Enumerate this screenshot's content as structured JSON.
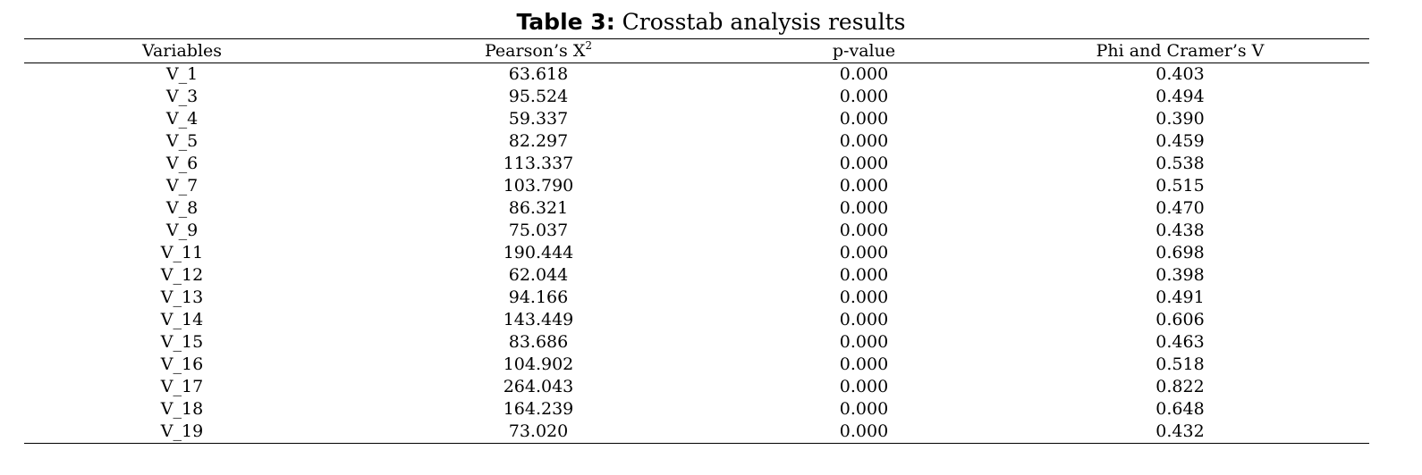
{
  "caption": {
    "label": "Table 3:",
    "text": " Crosstab analysis results"
  },
  "table": {
    "headers": {
      "variables": "Variables",
      "pearson": "Pearson’s X",
      "pearson_sup": "2",
      "pvalue": "p-value",
      "phi": "Phi and Cramer’s V"
    },
    "rows": [
      {
        "variable": "V_1",
        "pearson": "63.618",
        "pvalue": "0.000",
        "phi": "0.403"
      },
      {
        "variable": "V_3",
        "pearson": "95.524",
        "pvalue": "0.000",
        "phi": "0.494"
      },
      {
        "variable": "V_4",
        "pearson": "59.337",
        "pvalue": "0.000",
        "phi": "0.390"
      },
      {
        "variable": "V_5",
        "pearson": "82.297",
        "pvalue": "0.000",
        "phi": "0.459"
      },
      {
        "variable": "V_6",
        "pearson": "113.337",
        "pvalue": "0.000",
        "phi": "0.538"
      },
      {
        "variable": "V_7",
        "pearson": "103.790",
        "pvalue": "0.000",
        "phi": "0.515"
      },
      {
        "variable": "V_8",
        "pearson": "86.321",
        "pvalue": "0.000",
        "phi": "0.470"
      },
      {
        "variable": "V_9",
        "pearson": "75.037",
        "pvalue": "0.000",
        "phi": "0.438"
      },
      {
        "variable": "V_11",
        "pearson": "190.444",
        "pvalue": "0.000",
        "phi": "0.698"
      },
      {
        "variable": "V_12",
        "pearson": "62.044",
        "pvalue": "0.000",
        "phi": "0.398"
      },
      {
        "variable": "V_13",
        "pearson": "94.166",
        "pvalue": "0.000",
        "phi": "0.491"
      },
      {
        "variable": "V_14",
        "pearson": "143.449",
        "pvalue": "0.000",
        "phi": "0.606"
      },
      {
        "variable": "V_15",
        "pearson": "83.686",
        "pvalue": "0.000",
        "phi": "0.463"
      },
      {
        "variable": "V_16",
        "pearson": "104.902",
        "pvalue": "0.000",
        "phi": "0.518"
      },
      {
        "variable": "V_17",
        "pearson": "264.043",
        "pvalue": "0.000",
        "phi": "0.822"
      },
      {
        "variable": "V_18",
        "pearson": "164.239",
        "pvalue": "0.000",
        "phi": "0.648"
      },
      {
        "variable": "V_19",
        "pearson": "73.020",
        "pvalue": "0.000",
        "phi": "0.432"
      }
    ]
  }
}
